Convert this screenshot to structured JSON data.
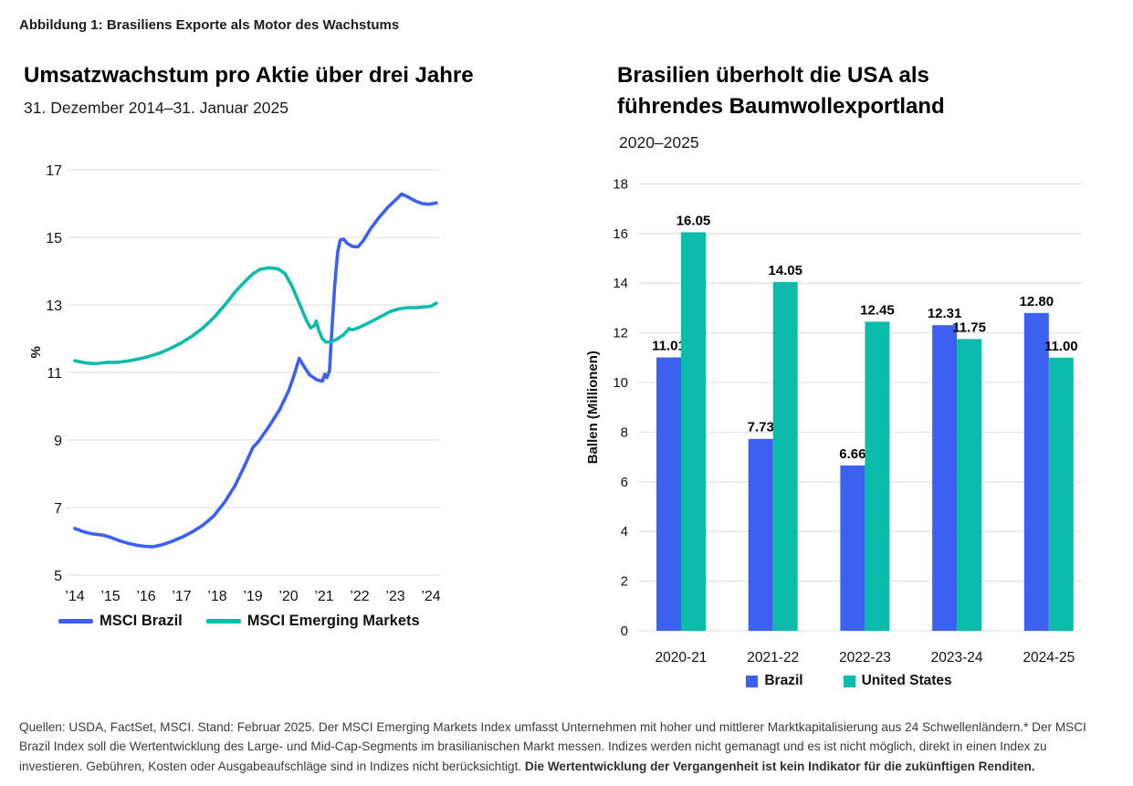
{
  "figure_label": "Abbildung 1: Brasiliens Exporte als Motor des Wachstums",
  "colors": {
    "brazil_blue": "#3C60F0",
    "teal": "#0BBCAB",
    "gridline": "#E3E3E3",
    "text": "#111111",
    "label_text": "#000000"
  },
  "chart_data": [
    {
      "type": "line",
      "title": "Umsatzwachstum pro Aktie über drei Jahre",
      "subtitle": "31. Dezember 2014–31. Januar 2025",
      "ylabel": "%",
      "ylim": [
        5,
        17
      ],
      "yticks": [
        17,
        15,
        13,
        11,
        9,
        7,
        5
      ],
      "xtick_labels": [
        "’14",
        "’15",
        "’16",
        "’17",
        "’18",
        "’19",
        "’20",
        "’21",
        "’22",
        "’23",
        "’24"
      ],
      "x_unit": "years since 31.12.2014",
      "xlim": [
        0,
        10.15
      ],
      "grid": true,
      "legend_position": "bottom",
      "series": [
        {
          "name": "MSCI Brazil",
          "color_key": "brazil_blue",
          "points": [
            [
              0,
              6.38
            ],
            [
              0.25,
              6.28
            ],
            [
              0.5,
              6.22
            ],
            [
              0.8,
              6.18
            ],
            [
              1.0,
              6.12
            ],
            [
              1.25,
              6.02
            ],
            [
              1.5,
              5.94
            ],
            [
              1.75,
              5.88
            ],
            [
              2.0,
              5.85
            ],
            [
              2.2,
              5.84
            ],
            [
              2.45,
              5.9
            ],
            [
              2.7,
              5.99
            ],
            [
              3.0,
              6.12
            ],
            [
              3.3,
              6.28
            ],
            [
              3.6,
              6.48
            ],
            [
              3.9,
              6.75
            ],
            [
              4.2,
              7.15
            ],
            [
              4.5,
              7.65
            ],
            [
              4.75,
              8.2
            ],
            [
              5.0,
              8.78
            ],
            [
              5.15,
              8.95
            ],
            [
              5.45,
              9.4
            ],
            [
              5.75,
              9.9
            ],
            [
              6.0,
              10.45
            ],
            [
              6.15,
              10.9
            ],
            [
              6.3,
              11.42
            ],
            [
              6.45,
              11.15
            ],
            [
              6.6,
              10.92
            ],
            [
              6.8,
              10.78
            ],
            [
              6.95,
              10.74
            ],
            [
              7.02,
              10.95
            ],
            [
              7.08,
              10.85
            ],
            [
              7.15,
              11.05
            ],
            [
              7.22,
              12.3
            ],
            [
              7.3,
              13.6
            ],
            [
              7.38,
              14.55
            ],
            [
              7.45,
              14.92
            ],
            [
              7.55,
              14.95
            ],
            [
              7.65,
              14.82
            ],
            [
              7.8,
              14.73
            ],
            [
              7.95,
              14.72
            ],
            [
              8.1,
              14.9
            ],
            [
              8.3,
              15.25
            ],
            [
              8.55,
              15.6
            ],
            [
              8.8,
              15.9
            ],
            [
              9.0,
              16.1
            ],
            [
              9.18,
              16.28
            ],
            [
              9.35,
              16.2
            ],
            [
              9.55,
              16.08
            ],
            [
              9.75,
              16.0
            ],
            [
              9.95,
              15.98
            ],
            [
              10.15,
              16.02
            ]
          ]
        },
        {
          "name": "MSCI Emerging Markets",
          "color_key": "teal",
          "points": [
            [
              0,
              11.35
            ],
            [
              0.3,
              11.28
            ],
            [
              0.6,
              11.26
            ],
            [
              0.9,
              11.3
            ],
            [
              1.2,
              11.3
            ],
            [
              1.5,
              11.34
            ],
            [
              1.8,
              11.4
            ],
            [
              2.1,
              11.48
            ],
            [
              2.4,
              11.58
            ],
            [
              2.7,
              11.72
            ],
            [
              3.0,
              11.88
            ],
            [
              3.3,
              12.08
            ],
            [
              3.6,
              12.32
            ],
            [
              3.9,
              12.62
            ],
            [
              4.2,
              12.98
            ],
            [
              4.5,
              13.38
            ],
            [
              4.8,
              13.72
            ],
            [
              5.0,
              13.92
            ],
            [
              5.2,
              14.05
            ],
            [
              5.45,
              14.1
            ],
            [
              5.7,
              14.07
            ],
            [
              5.9,
              13.93
            ],
            [
              6.1,
              13.55
            ],
            [
              6.3,
              13.05
            ],
            [
              6.5,
              12.55
            ],
            [
              6.62,
              12.32
            ],
            [
              6.72,
              12.38
            ],
            [
              6.78,
              12.52
            ],
            [
              6.85,
              12.25
            ],
            [
              6.95,
              12.0
            ],
            [
              7.05,
              11.9
            ],
            [
              7.2,
              11.9
            ],
            [
              7.35,
              11.98
            ],
            [
              7.55,
              12.12
            ],
            [
              7.7,
              12.3
            ],
            [
              7.78,
              12.26
            ],
            [
              7.95,
              12.32
            ],
            [
              8.15,
              12.42
            ],
            [
              8.35,
              12.52
            ],
            [
              8.6,
              12.66
            ],
            [
              8.85,
              12.8
            ],
            [
              9.1,
              12.88
            ],
            [
              9.35,
              12.92
            ],
            [
              9.6,
              12.92
            ],
            [
              9.85,
              12.94
            ],
            [
              10.0,
              12.96
            ],
            [
              10.15,
              13.05
            ]
          ]
        }
      ]
    },
    {
      "type": "bar",
      "title": "Brasilien überholt die USA als führendes Baumwollexportland",
      "title_line1": "Brasilien überholt die USA als",
      "title_line2": "führendes Baumwollexportland",
      "subtitle": "2020–2025",
      "ylabel": "Ballen (Millionen)",
      "ylim": [
        0,
        18
      ],
      "yticks": [
        18,
        16,
        14,
        12,
        10,
        8,
        6,
        4,
        2,
        0
      ],
      "categories": [
        "2020-21",
        "2021-22",
        "2022-23",
        "2023-24",
        "2024-25"
      ],
      "grid": true,
      "legend_position": "bottom",
      "series": [
        {
          "name": "Brazil",
          "color_key": "brazil_blue",
          "values": [
            11.01,
            7.73,
            6.66,
            12.31,
            12.8
          ]
        },
        {
          "name": "United States",
          "color_key": "teal",
          "values": [
            16.05,
            14.05,
            12.45,
            11.75,
            11.0
          ]
        }
      ]
    }
  ],
  "footnote": {
    "text": "Quellen: USDA, FactSet, MSCI. Stand: Februar 2025. Der MSCI Emerging Markets Index umfasst Unternehmen mit hoher und mittlerer Marktkapitalisierung aus 24 Schwellenländern.* Der MSCI Brazil Index soll die Wertentwicklung des Large- und Mid-Cap-Segments im brasilianischen Markt messen. Indizes werden nicht gemanagt und es ist nicht möglich, direkt in einen Index zu investieren. Gebühren, Kosten oder Ausgabeaufschläge sind in Indizes nicht berücksichtigt. ",
    "bold_text": "Die Wertentwicklung der Vergangenheit ist kein Indikator für die zukünftigen Renditen."
  }
}
